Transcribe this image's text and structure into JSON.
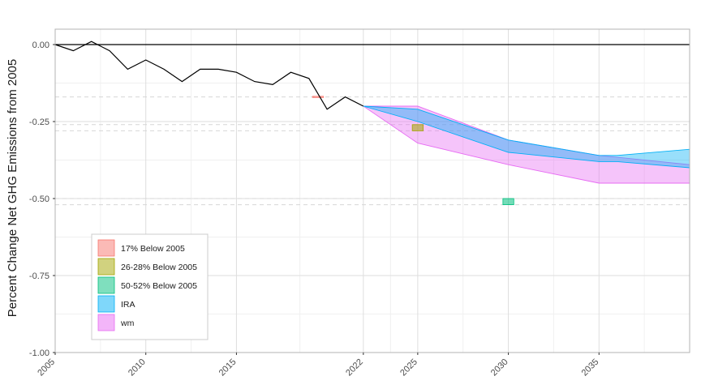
{
  "chart_data": {
    "type": "area",
    "title": "",
    "xlabel": "",
    "ylabel": "Percent Change Net GHG Emissions from 2005",
    "xlim": [
      2005,
      2040
    ],
    "ylim": [
      -1.0,
      0.05
    ],
    "x_ticks": [
      2005,
      2010,
      2015,
      2022,
      2025,
      2030,
      2035
    ],
    "y_ticks": [
      0.0,
      -0.25,
      -0.5,
      -0.75,
      -1.0
    ],
    "y_tick_labels": [
      "0.00",
      "-0.25",
      "-0.50",
      "-0.75",
      "-1.00"
    ],
    "reference_lines": [
      -0.17,
      -0.26,
      -0.28,
      -0.5,
      -0.52
    ],
    "grid": true,
    "legend_position": "bottom-left",
    "historical": {
      "color": "#000000",
      "x": [
        2005,
        2006,
        2007,
        2008,
        2009,
        2010,
        2011,
        2012,
        2013,
        2014,
        2015,
        2016,
        2017,
        2018,
        2019,
        2020,
        2021,
        2022
      ],
      "y": [
        0.0,
        -0.02,
        0.01,
        -0.02,
        -0.08,
        -0.05,
        -0.08,
        -0.12,
        -0.08,
        -0.08,
        -0.09,
        -0.12,
        -0.13,
        -0.09,
        -0.11,
        -0.21,
        -0.17,
        -0.2
      ]
    },
    "targets": [
      {
        "name": "17% Below 2005",
        "color": "#f8766d",
        "x": [
          2019.2,
          2019.8
        ],
        "ymin": -0.172,
        "ymax": -0.168
      },
      {
        "name": "26-28% Below 2005",
        "color": "#a3a500",
        "x": [
          2024.7,
          2025.3
        ],
        "ymin": -0.28,
        "ymax": -0.26
      },
      {
        "name": "50-52% Below 2005",
        "color": "#00bf7d",
        "x": [
          2029.7,
          2030.3
        ],
        "ymin": -0.52,
        "ymax": -0.5
      }
    ],
    "series": [
      {
        "name": "IRA",
        "color": "#00b0f6",
        "x": [
          2022,
          2025,
          2030,
          2035,
          2036,
          2040
        ],
        "ymin": [
          -0.2,
          -0.25,
          -0.35,
          -0.38,
          -0.38,
          -0.4
        ],
        "ymax": [
          -0.2,
          -0.21,
          -0.31,
          -0.36,
          -0.36,
          -0.34
        ]
      },
      {
        "name": "wm",
        "color": "#e76bf3",
        "x": [
          2022,
          2025,
          2030,
          2035,
          2040
        ],
        "ymin": [
          -0.2,
          -0.32,
          -0.39,
          -0.45,
          -0.45
        ],
        "ymax": [
          -0.2,
          -0.2,
          -0.31,
          -0.36,
          -0.39
        ]
      }
    ],
    "legend": [
      {
        "label": "17% Below 2005",
        "color": "#f8766d"
      },
      {
        "label": "26-28% Below 2005",
        "color": "#a3a500"
      },
      {
        "label": "50-52% Below 2005",
        "color": "#00bf7d"
      },
      {
        "label": "IRA",
        "color": "#00b0f6"
      },
      {
        "label": "wm",
        "color": "#e76bf3"
      }
    ]
  }
}
